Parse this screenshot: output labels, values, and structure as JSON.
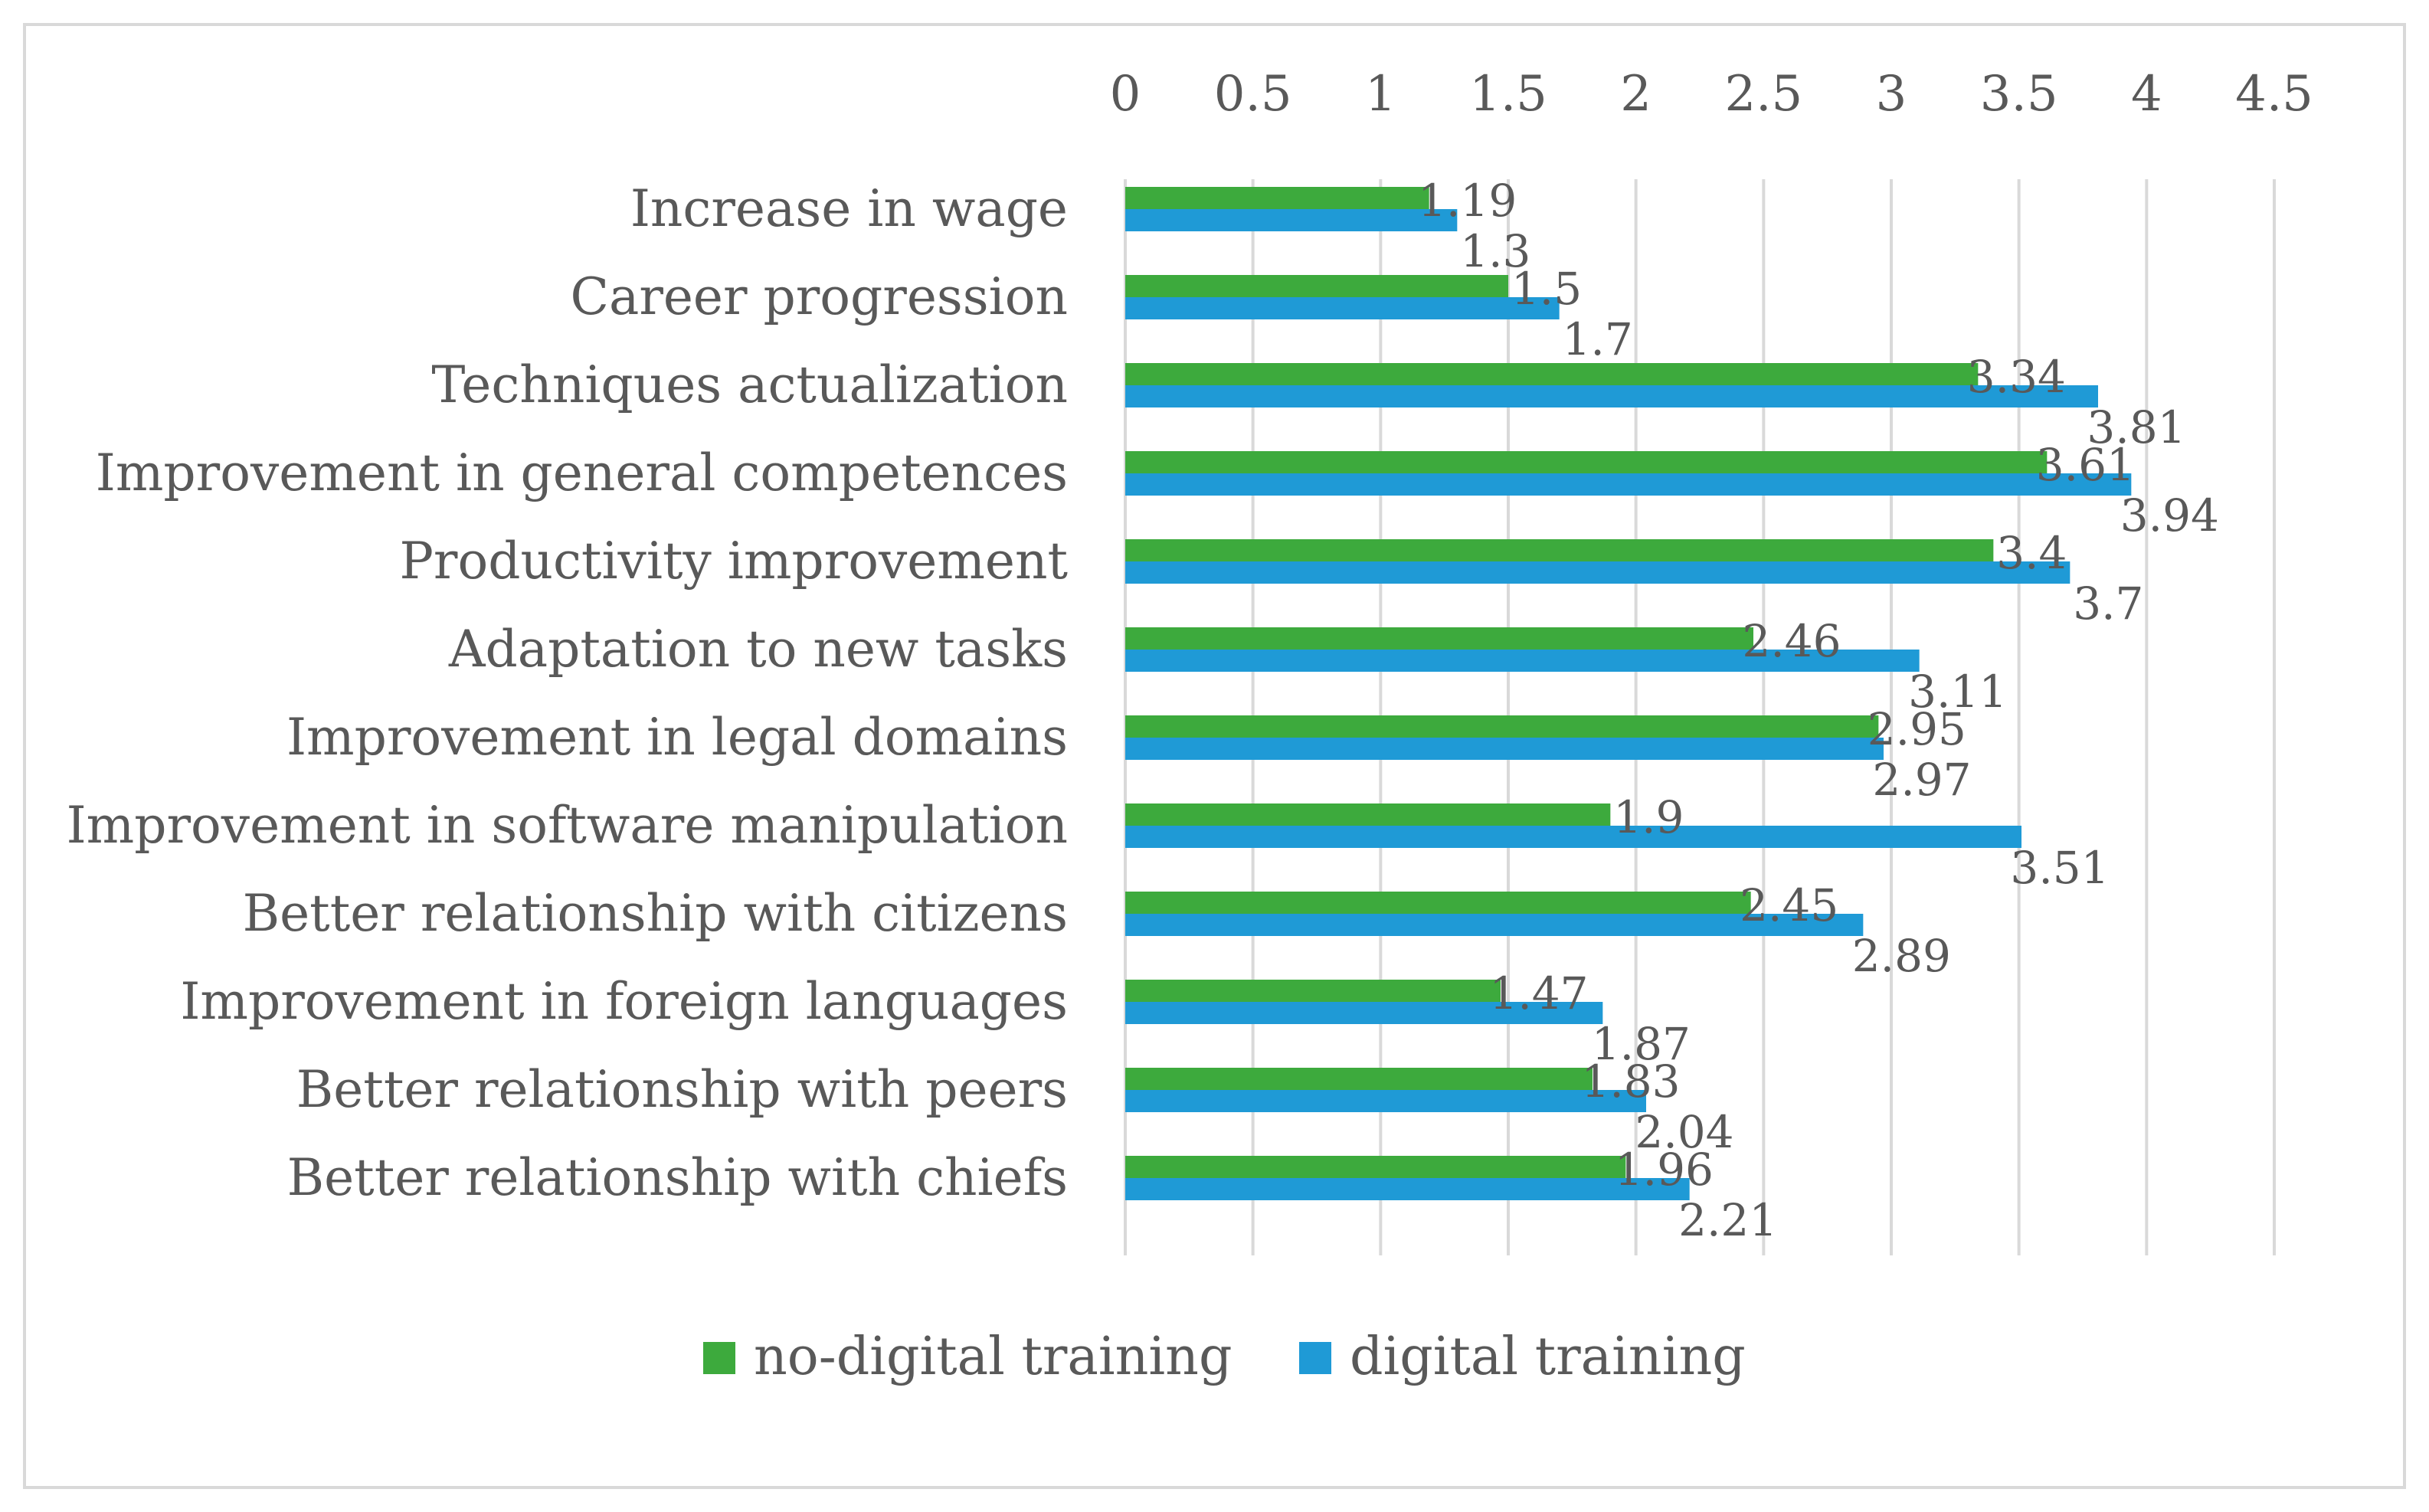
{
  "chart_data": {
    "type": "bar",
    "orientation": "horizontal",
    "categories": [
      "Increase in wage",
      "Career progression",
      "Techniques actualization",
      "Improvement in general competences",
      "Productivity improvement",
      "Adaptation to new tasks ",
      "Improvement in legal domains",
      "Improvement in software manipulation",
      "Better relationship with citizens",
      "Improvement in foreign languages ",
      "Better relationship with peers ",
      "Better relationship with chiefs"
    ],
    "series": [
      {
        "name": "no-digital training",
        "color": "#3daa3d",
        "values": [
          1.19,
          1.5,
          3.34,
          3.61,
          3.4,
          2.46,
          2.95,
          1.9,
          2.45,
          1.47,
          1.83,
          1.96
        ],
        "labels": [
          "1.19",
          "1.5",
          "3.34",
          "3.61",
          "3.4",
          "2.46",
          "2.95",
          "1.9",
          "2.45",
          "1.47",
          "1.83",
          "1.96"
        ]
      },
      {
        "name": "digital training",
        "color": "#1f9ad6",
        "values": [
          1.3,
          1.7,
          3.81,
          3.94,
          3.7,
          3.11,
          2.97,
          3.51,
          2.89,
          1.87,
          2.04,
          2.21
        ],
        "labels": [
          "1.3",
          "1.7",
          "3.81",
          "3.94",
          "3.7",
          "3.11",
          "2.97",
          "3.51",
          "2.89",
          "1.87",
          "2.04",
          "2.21"
        ]
      }
    ],
    "xlim": [
      0,
      4.5
    ],
    "x_ticks": [
      "0",
      "0.5",
      "1",
      "1.5",
      "2",
      "2.5",
      "3",
      "3.5",
      "4",
      "4.5"
    ],
    "axis_position": "top",
    "grid": true,
    "legend_position": "bottom",
    "title": "",
    "xlabel": "",
    "ylabel": ""
  }
}
